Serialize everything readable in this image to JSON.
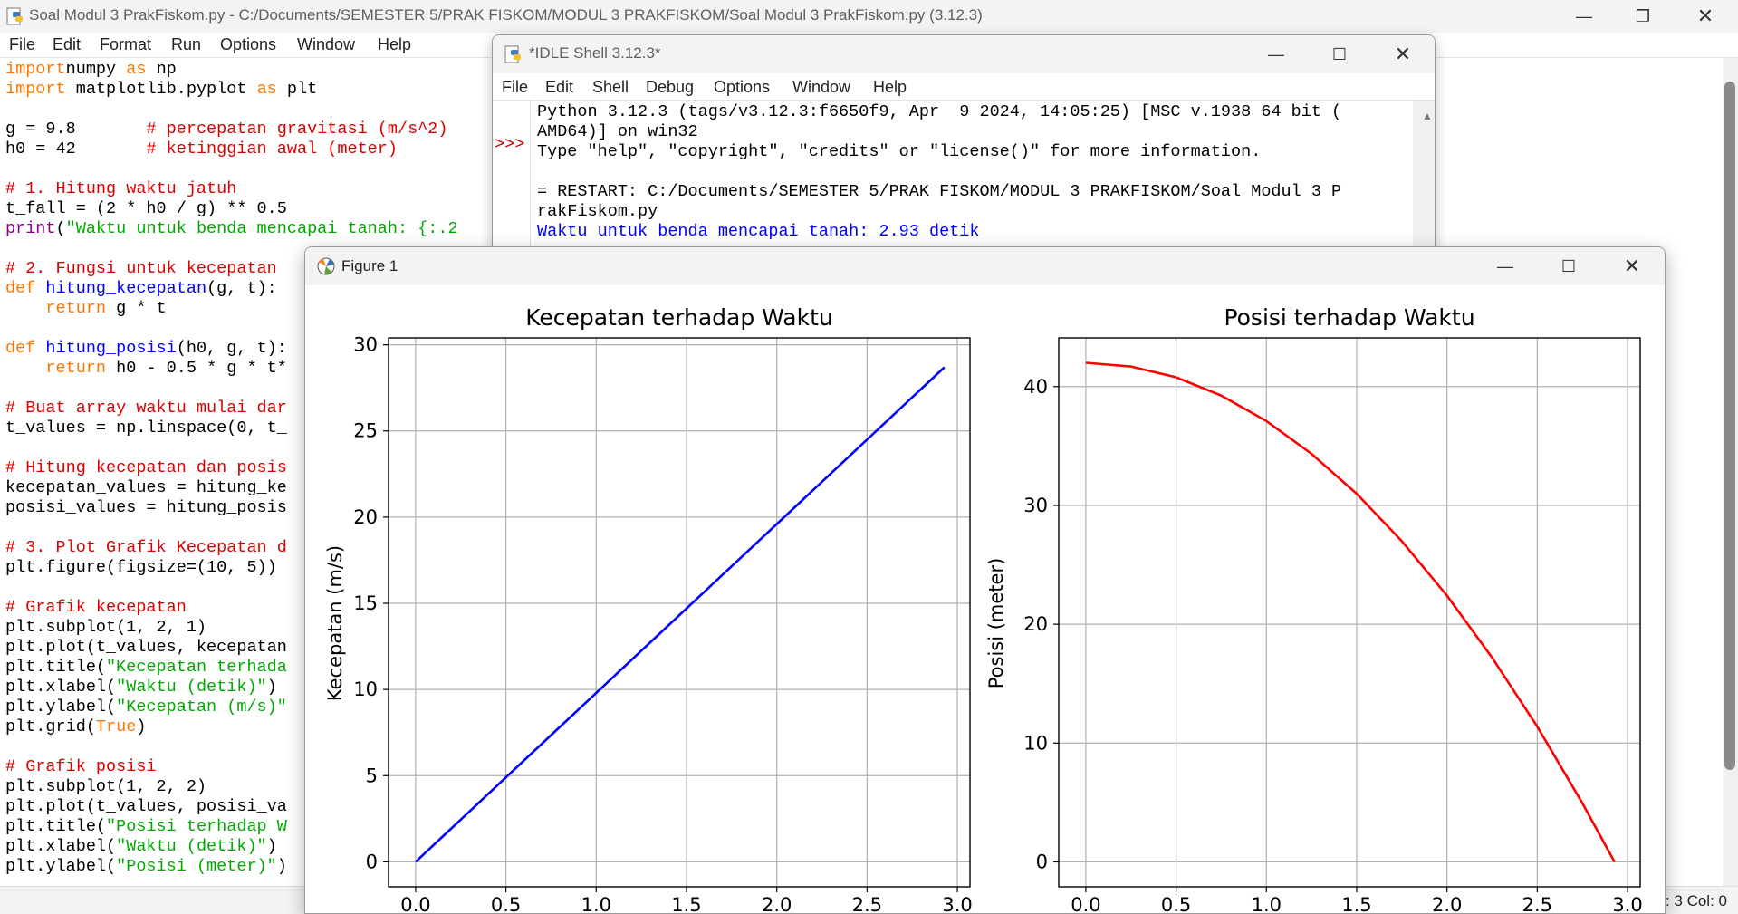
{
  "editor": {
    "title": "Soal Modul 3 PrakFiskom.py - C:/Documents/SEMESTER 5/PRAK FISKOM/MODUL 3 PRAKFISKOM/Soal Modul 3 PrakFiskom.py (3.12.3)",
    "menu": [
      "File",
      "Edit",
      "Format",
      "Run",
      "Options",
      "Window",
      "Help"
    ],
    "status": ": 3  Col: 0",
    "code_lines": [
      [
        [
          "kw",
          "import"
        ],
        [
          "",
          "numpy "
        ],
        [
          "kw",
          "as"
        ],
        [
          "",
          " np"
        ]
      ],
      [
        [
          "kw",
          "import"
        ],
        [
          "",
          ""
        ],
        [
          "",
          ""
        ],
        [
          "",
          " matplotlib.pyplot "
        ],
        [
          "kw",
          "as"
        ],
        [
          "",
          " plt"
        ]
      ],
      [],
      [
        [
          "",
          "g = 9.8       "
        ],
        [
          "cm",
          "# percepatan gravitasi (m/s^2)"
        ]
      ],
      [
        [
          "",
          "h0 = 42       "
        ],
        [
          "cm",
          "# ketinggian awal (meter)"
        ]
      ],
      [],
      [
        [
          "cm",
          "# 1. Hitung waktu jatuh"
        ]
      ],
      [
        [
          "",
          "t_fall = (2 * h0 / g) ** 0.5"
        ]
      ],
      [
        [
          "bi",
          "print"
        ],
        [
          "",
          "("
        ],
        [
          "st",
          "\"Waktu untuk benda mencapai tanah: {:.2"
        ]
      ],
      [],
      [
        [
          "cm",
          "# 2. Fungsi untuk kecepatan"
        ]
      ],
      [
        [
          "kw",
          "def"
        ],
        [
          "",
          " "
        ],
        [
          "df",
          "hitung_kecepatan"
        ],
        [
          "",
          "(g, t):"
        ]
      ],
      [
        [
          "",
          "    "
        ],
        [
          "kw",
          "return"
        ],
        [
          "",
          " g * t"
        ]
      ],
      [],
      [
        [
          "kw",
          "def"
        ],
        [
          "",
          " "
        ],
        [
          "df",
          "hitung_posisi"
        ],
        [
          "",
          "(h0, g, t):"
        ]
      ],
      [
        [
          "",
          "    "
        ],
        [
          "kw",
          "return"
        ],
        [
          "",
          " h0 - 0.5 * g * t*"
        ]
      ],
      [],
      [
        [
          "cm",
          "# Buat array waktu mulai dar"
        ]
      ],
      [
        [
          "",
          "t_values = np.linspace(0, t_"
        ]
      ],
      [],
      [
        [
          "cm",
          "# Hitung kecepatan dan posis"
        ]
      ],
      [
        [
          "",
          "kecepatan_values = hitung_ke"
        ]
      ],
      [
        [
          "",
          "posisi_values = hitung_posis"
        ]
      ],
      [],
      [
        [
          "cm",
          "# 3. Plot Grafik Kecepatan d"
        ]
      ],
      [
        [
          "",
          "plt.figure(figsize=(10, 5))"
        ]
      ],
      [],
      [
        [
          "cm",
          "# Grafik kecepatan"
        ]
      ],
      [
        [
          "",
          "plt.subplot(1, 2, 1)"
        ]
      ],
      [
        [
          "",
          "plt.plot(t_values, kecepatan"
        ]
      ],
      [
        [
          "",
          "plt.title("
        ],
        [
          "st",
          "\"Kecepatan terhada"
        ]
      ],
      [
        [
          "",
          "plt.xlabel("
        ],
        [
          "st",
          "\"Waktu (detik)\""
        ],
        [
          "",
          ")"
        ]
      ],
      [
        [
          "",
          "plt.ylabel("
        ],
        [
          "st",
          "\"Kecepatan (m/s)\""
        ]
      ],
      [
        [
          "",
          "plt.grid("
        ],
        [
          "kw",
          "True"
        ],
        [
          "",
          ")"
        ]
      ],
      [],
      [
        [
          "cm",
          "# Grafik posisi"
        ]
      ],
      [
        [
          "",
          "plt.subplot(1, 2, 2)"
        ]
      ],
      [
        [
          "",
          "plt.plot(t_values, posisi_va"
        ]
      ],
      [
        [
          "",
          "plt.title("
        ],
        [
          "st",
          "\"Posisi terhadap W"
        ]
      ],
      [
        [
          "",
          "plt.xlabel("
        ],
        [
          "st",
          "\"Waktu (detik)\""
        ],
        [
          "",
          ")"
        ]
      ],
      [
        [
          "",
          "plt.ylabel("
        ],
        [
          "st",
          "\"Posisi (meter)\""
        ],
        [
          "",
          ")"
        ]
      ]
    ]
  },
  "shell": {
    "title": "*IDLE Shell 3.12.3*",
    "menu": [
      "File",
      "Edit",
      "Shell",
      "Debug",
      "Options",
      "Window",
      "Help"
    ],
    "prompt": ">>>",
    "lines": [
      {
        "text": "Python 3.12.3 (tags/v3.12.3:f6650f9, Apr  9 2024, 14:05:25) [MSC v.1938 64 bit (",
        "color": "black"
      },
      {
        "text": "AMD64)] on win32",
        "color": "black"
      },
      {
        "text": "Type \"help\", \"copyright\", \"credits\" or \"license()\" for more information.",
        "color": "black"
      },
      {
        "text": "",
        "color": "black"
      },
      {
        "text": "= RESTART: C:/Documents/SEMESTER 5/PRAK FISKOM/MODUL 3 PRAKFISKOM/Soal Modul 3 P",
        "color": "black"
      },
      {
        "text": "rakFiskom.py",
        "color": "black"
      },
      {
        "text": "Waktu untuk benda mencapai tanah: 2.93 detik",
        "color": "blue"
      }
    ]
  },
  "figure": {
    "title": "Figure 1"
  },
  "chart_data": [
    {
      "type": "line",
      "title": "Kecepatan terhadap Waktu",
      "xlabel": "",
      "ylabel": "Kecepatan (m/s)",
      "xlim": [
        -0.15,
        3.07
      ],
      "ylim": [
        -1.45,
        30.4
      ],
      "xticks": [
        "0.0",
        "0.5",
        "1.0",
        "1.5",
        "2.0",
        "2.5",
        "3.0"
      ],
      "yticks": [
        "0",
        "5",
        "10",
        "15",
        "20",
        "25",
        "30"
      ],
      "grid": true,
      "series": [
        {
          "color": "#0000ff",
          "x": [
            0,
            2.928
          ],
          "y": [
            0,
            28.69
          ]
        }
      ]
    },
    {
      "type": "line",
      "title": "Posisi terhadap Waktu",
      "xlabel": "",
      "ylabel": "Posisi (meter)",
      "xlim": [
        -0.15,
        3.07
      ],
      "ylim": [
        -2.1,
        44.1
      ],
      "xticks": [
        "0.0",
        "0.5",
        "1.0",
        "1.5",
        "2.0",
        "2.5",
        "3.0"
      ],
      "yticks": [
        "0",
        "10",
        "20",
        "30",
        "40"
      ],
      "grid": true,
      "series": [
        {
          "color": "#ff0000",
          "x": [
            0,
            0.25,
            0.5,
            0.75,
            1.0,
            1.25,
            1.5,
            1.75,
            2.0,
            2.25,
            2.5,
            2.75,
            2.928
          ],
          "y": [
            42.0,
            41.69,
            40.78,
            39.24,
            37.1,
            34.34,
            30.98,
            26.99,
            22.4,
            17.19,
            11.38,
            4.94,
            0.0
          ]
        }
      ]
    }
  ]
}
